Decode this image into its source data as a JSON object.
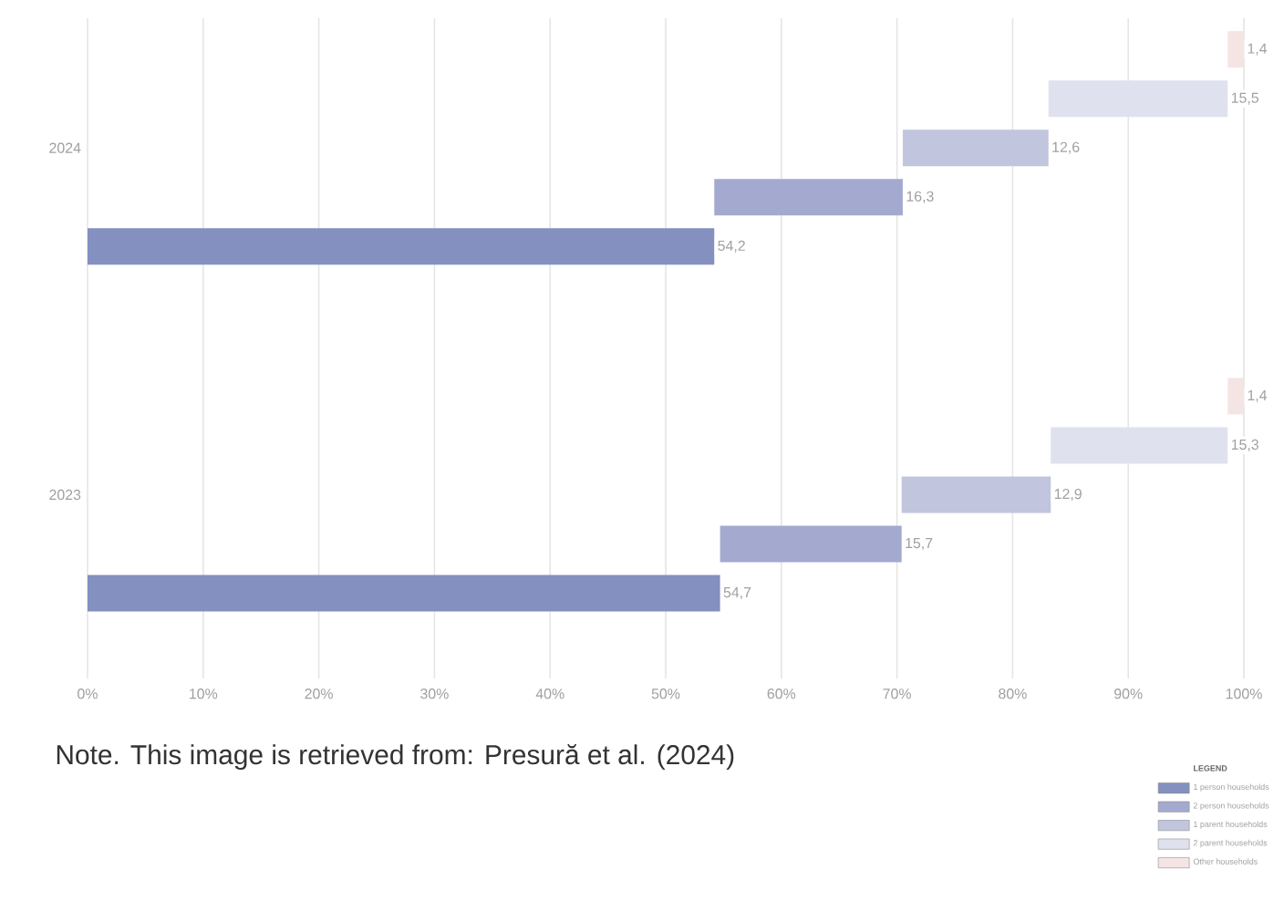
{
  "chart_data": {
    "type": "bar",
    "orientation": "horizontal",
    "categories": [
      "2024",
      "2023"
    ],
    "series": [
      {
        "name": "1 person households",
        "color": "#8390c0",
        "values": [
          54.2,
          54.7
        ],
        "base": [
          0,
          0
        ],
        "value_labels": [
          "54,2",
          "54,7"
        ]
      },
      {
        "name": "2 person households",
        "color": "#a4aacf",
        "values": [
          16.3,
          15.7
        ],
        "base": [
          54.2,
          54.7
        ],
        "value_labels": [
          "16,3",
          "15,7"
        ]
      },
      {
        "name": "1 parent households",
        "color": "#c1c5de",
        "values": [
          12.6,
          12.9
        ],
        "base": [
          70.5,
          70.4
        ],
        "value_labels": [
          "12,6",
          "12,9"
        ]
      },
      {
        "name": "2 parent households",
        "color": "#dfe1ee",
        "values": [
          15.5,
          15.3
        ],
        "base": [
          83.1,
          83.3
        ],
        "value_labels": [
          "15,5",
          "15,3"
        ]
      },
      {
        "name": "Other households",
        "color": "#f5e4e4",
        "values": [
          1.4,
          1.4
        ],
        "base": [
          98.6,
          98.6
        ],
        "value_labels": [
          "1,4",
          "1,4"
        ]
      }
    ],
    "xlim": [
      0,
      100
    ],
    "xticks": [
      {
        "value": 0,
        "label": "0%"
      },
      {
        "value": 10,
        "label": "10%"
      },
      {
        "value": 20,
        "label": "20%"
      },
      {
        "value": 30,
        "label": "30%"
      },
      {
        "value": 40,
        "label": "40%"
      },
      {
        "value": 50,
        "label": "50%"
      },
      {
        "value": 60,
        "label": "60%"
      },
      {
        "value": 70,
        "label": "70%"
      },
      {
        "value": 80,
        "label": "80%"
      },
      {
        "value": 90,
        "label": "90%"
      },
      {
        "value": 100,
        "label": "100%"
      }
    ],
    "grid": "x",
    "legend": "bottom right",
    "legend_title": "LEGEND",
    "annotations": [
      "Note. This image is retrieved from: Presură et al. (2024)"
    ]
  }
}
